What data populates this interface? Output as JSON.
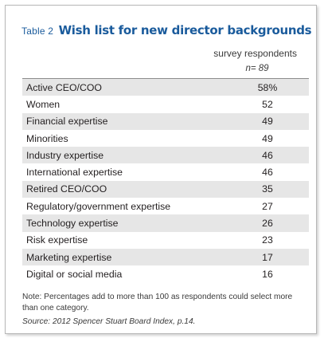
{
  "table": {
    "label": "Table 2",
    "title": "Wish list for new director backgrounds",
    "column_header": "survey respondents",
    "column_subheader": "n= 89",
    "rows": [
      {
        "label": "Active CEO/COO",
        "value": "58%"
      },
      {
        "label": "Women",
        "value": "52"
      },
      {
        "label": "Financial expertise",
        "value": "49"
      },
      {
        "label": "Minorities",
        "value": "49"
      },
      {
        "label": "Industry expertise",
        "value": "46"
      },
      {
        "label": "International expertise",
        "value": "46"
      },
      {
        "label": "Retired CEO/COO",
        "value": "35"
      },
      {
        "label": "Regulatory/government expertise",
        "value": "27"
      },
      {
        "label": "Technology expertise",
        "value": "26"
      },
      {
        "label": "Risk expertise",
        "value": "23"
      },
      {
        "label": "Marketing expertise",
        "value": "17"
      },
      {
        "label": "Digital or social media",
        "value": "16"
      }
    ],
    "note": "Note: Percentages add to more than 100 as respondents could select more than one category.",
    "source": "Source: 2012 Spencer Stuart Board Index, p.14."
  },
  "colors": {
    "title": "#1a5b9c",
    "row_shade": "#e6e6e6",
    "border": "#b7b7b7"
  }
}
